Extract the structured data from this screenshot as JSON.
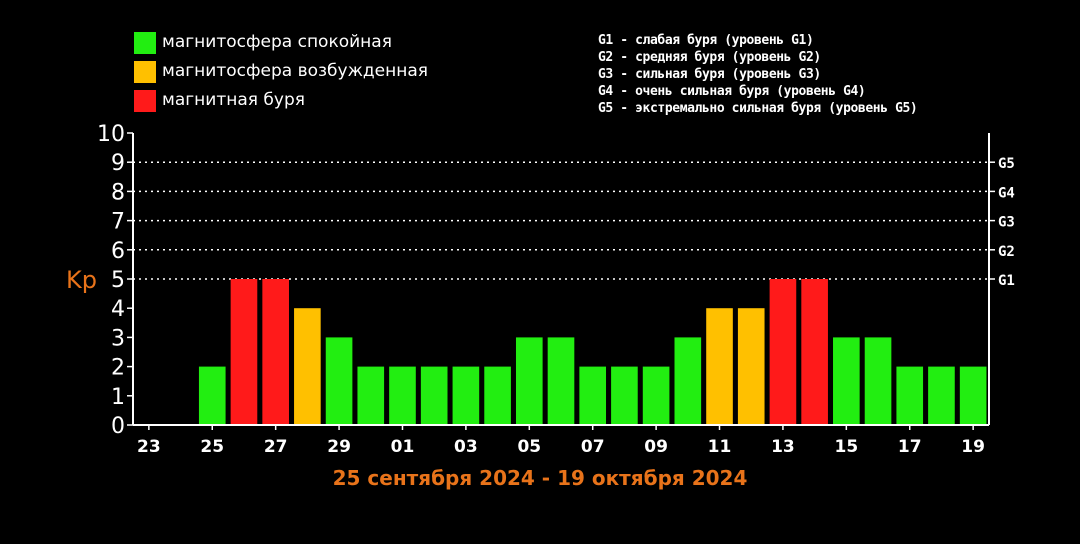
{
  "legend": [
    {
      "label": "магнитосфера спокойная",
      "color": "#22ee11"
    },
    {
      "label": "магнитосфера возбужденная",
      "color": "#ffc000"
    },
    {
      "label": "магнитная буря",
      "color": "#ff1a1a"
    }
  ],
  "g_levels": [
    "G1 - слабая буря (уровень G1)",
    "G2 - средняя буря (уровень G2)",
    "G3 - сильная буря (уровень G3)",
    "G4 - очень сильная буря (уровень G4)",
    "G5 - экстремально сильная буря (уровень G5)"
  ],
  "date_range": "25 сентября 2024 - 19 октября 2024",
  "chart_data": {
    "type": "bar",
    "ylabel": "Kp",
    "ylim": [
      0,
      10
    ],
    "yticks": [
      "0",
      "1",
      "2",
      "3",
      "4",
      "5",
      "6",
      "7",
      "8",
      "9",
      "10"
    ],
    "right_ticks": [
      {
        "value": 5,
        "label": "G1"
      },
      {
        "value": 6,
        "label": "G2"
      },
      {
        "value": 7,
        "label": "G3"
      },
      {
        "value": 8,
        "label": "G4"
      },
      {
        "value": 9,
        "label": "G5"
      }
    ],
    "grid": "dotted horizontal at 5-9",
    "xtick_labels": [
      "23",
      "25",
      "27",
      "29",
      "01",
      "03",
      "05",
      "07",
      "09",
      "11",
      "13",
      "15",
      "17",
      "19"
    ],
    "categories": [
      "23",
      "24",
      "25",
      "26",
      "27",
      "28",
      "29",
      "30",
      "01",
      "02",
      "03",
      "04",
      "05",
      "06",
      "07",
      "08",
      "09",
      "10",
      "11",
      "12",
      "13",
      "14",
      "15",
      "16",
      "17",
      "18",
      "19"
    ],
    "values": [
      0,
      0,
      2,
      5,
      5,
      4,
      3,
      2,
      2,
      2,
      2,
      2,
      3,
      3,
      2,
      2,
      2,
      3,
      4,
      4,
      5,
      5,
      3,
      3,
      2,
      2,
      2
    ],
    "colors": {
      "quiet": "#22ee11",
      "active": "#ffc000",
      "storm": "#ff1a1a"
    }
  }
}
